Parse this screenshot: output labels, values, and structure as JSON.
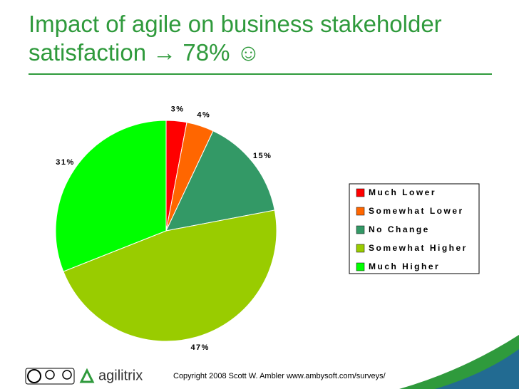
{
  "chart_data": {
    "type": "pie",
    "title": "Impact of agile on business stakeholder satisfaction → 78% ☺",
    "categories": [
      "Much Lower",
      "Somewhat Lower",
      "No Change",
      "Somewhat Higher",
      "Much Higher"
    ],
    "values": [
      3,
      4,
      15,
      47,
      31
    ],
    "value_labels": [
      "3%",
      "4%",
      "15%",
      "47%",
      "31%"
    ],
    "colors": [
      "#ff0000",
      "#ff6600",
      "#339966",
      "#99cc00",
      "#00ff00"
    ],
    "legend": "right"
  },
  "footer": {
    "copyright": "Copyright 2008  Scott W. Ambler www.ambysoft.com/surveys/",
    "logo": "agilitrix",
    "license": "cc by nc sa"
  }
}
